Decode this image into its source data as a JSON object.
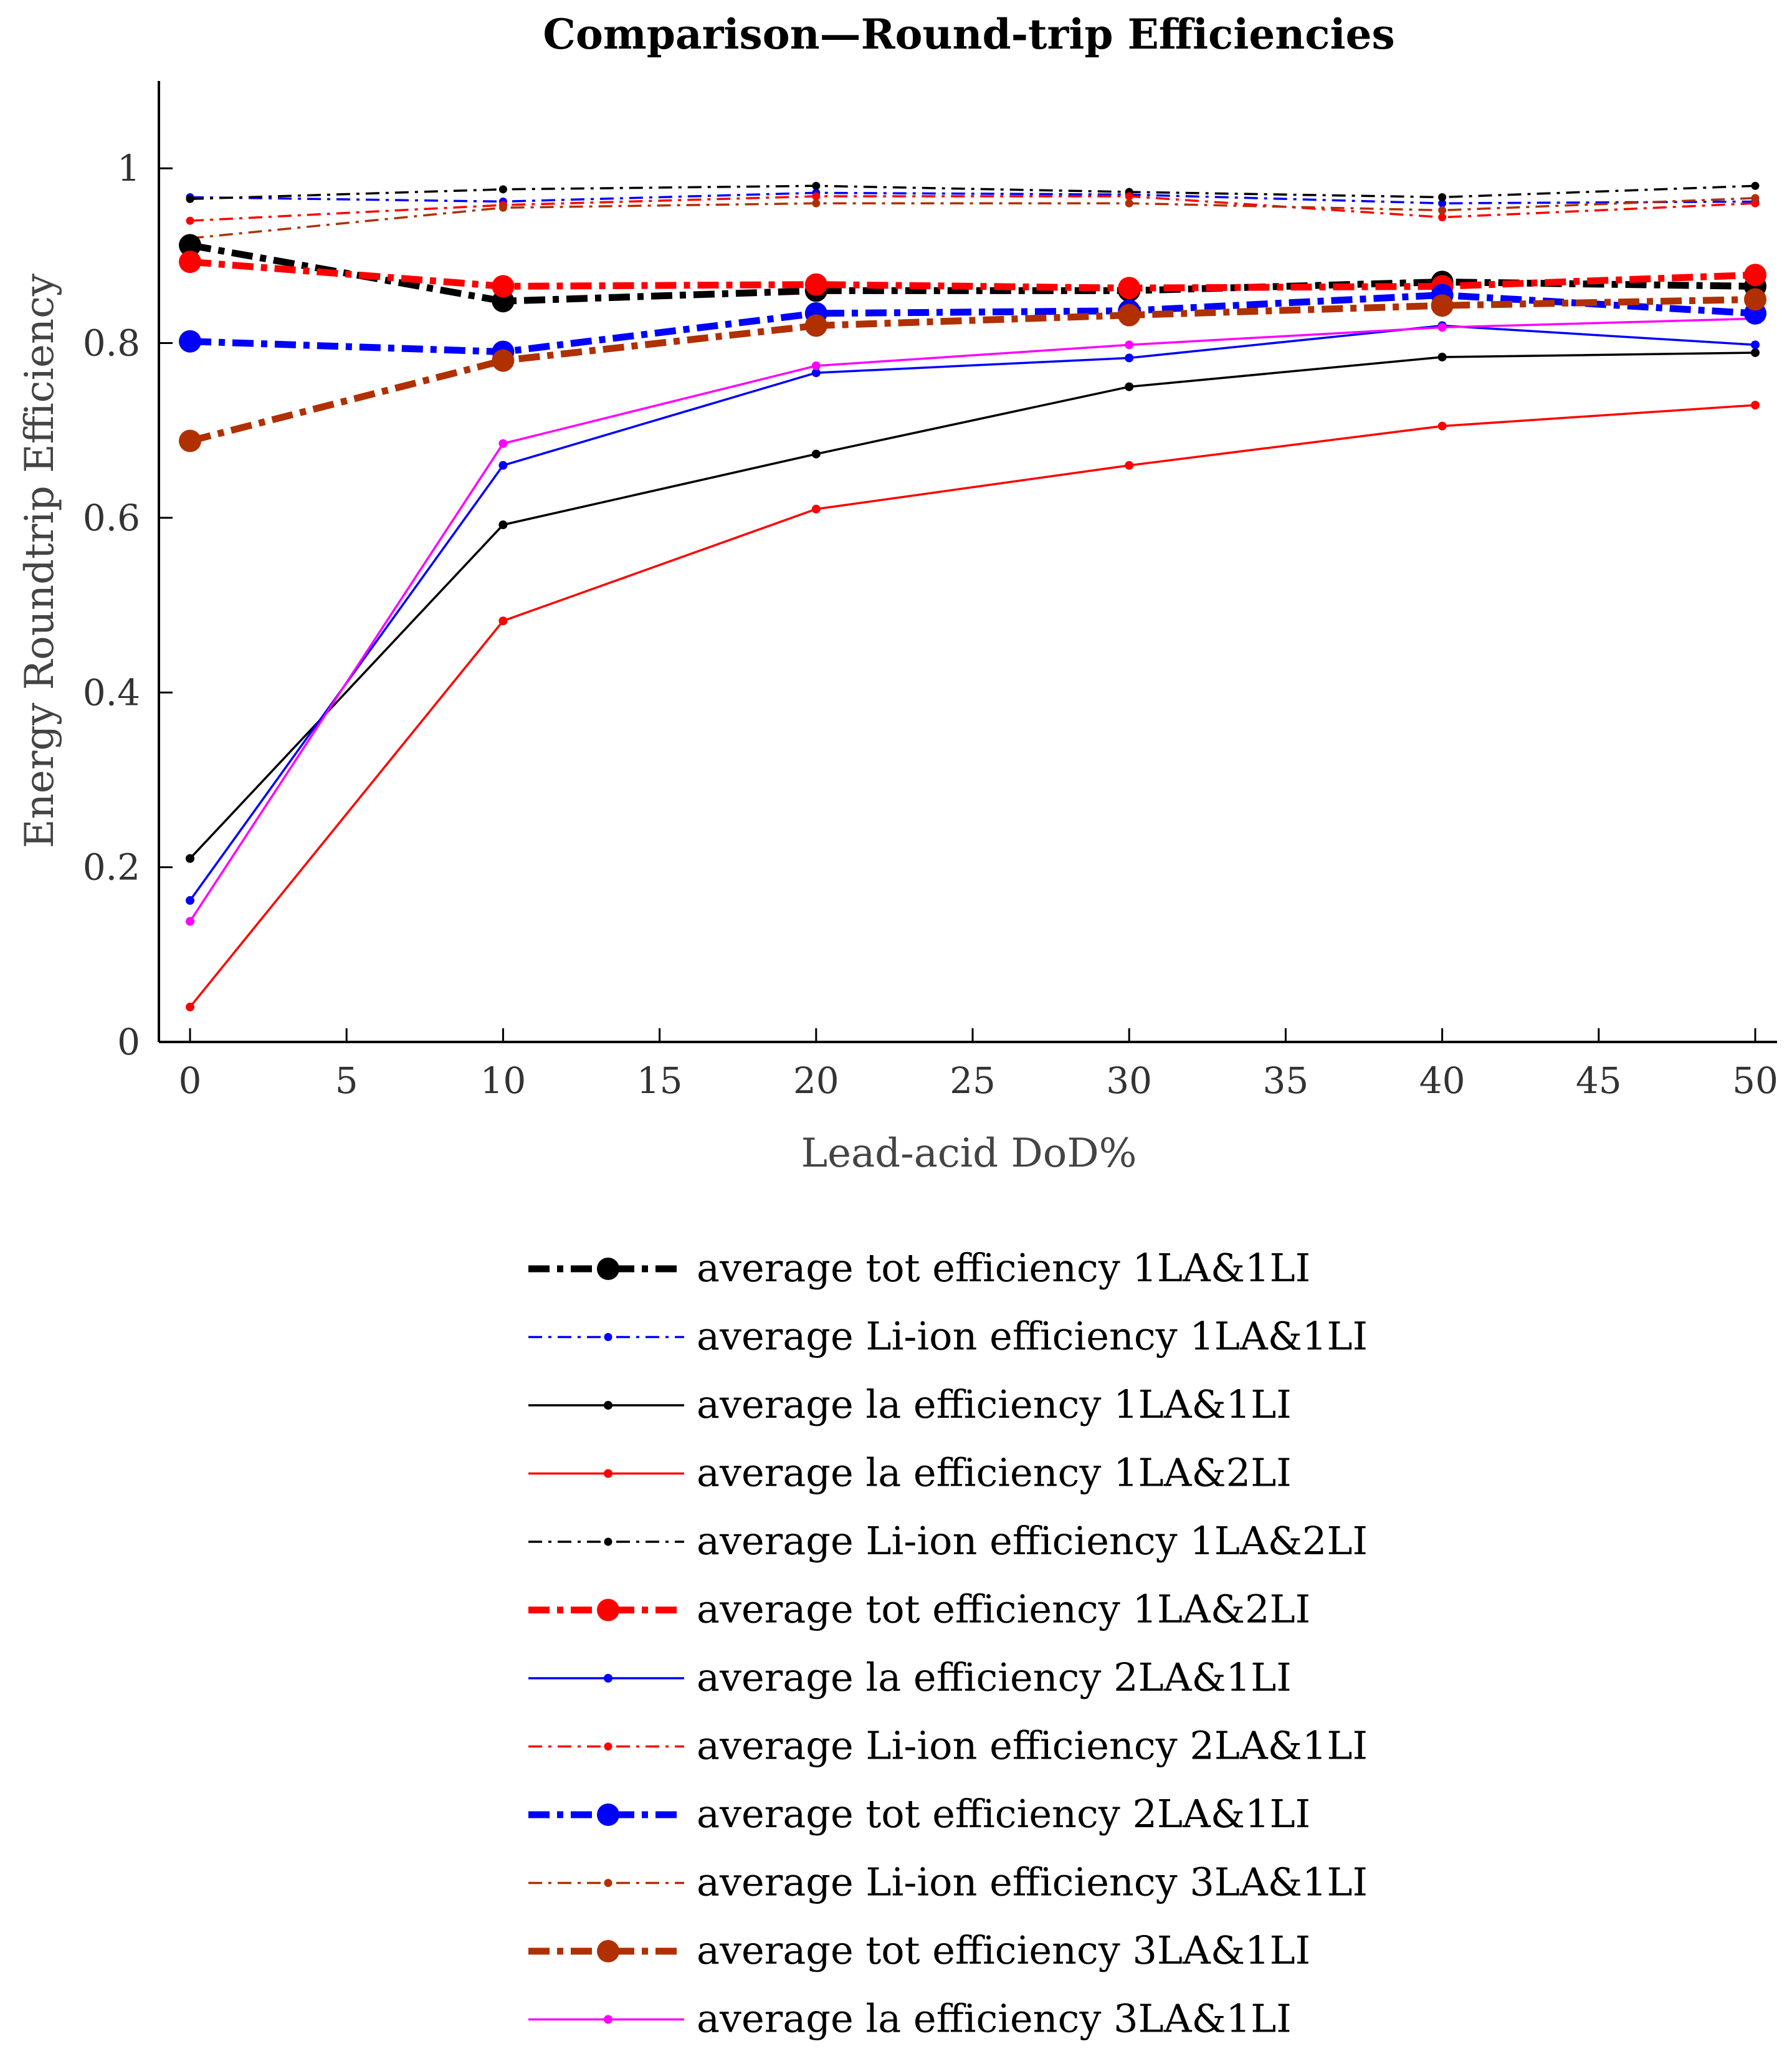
{
  "chart_data": {
    "type": "line",
    "title": "Comparison—Round-trip Efficiencies",
    "xlabel": "Lead-acid DoD%",
    "ylabel": "Energy Roundtrip Efficiency",
    "xlim": [
      0,
      50
    ],
    "ylim": [
      0,
      1.1
    ],
    "x_ticks": [
      "0",
      "5",
      "10",
      "15",
      "20",
      "25",
      "30",
      "35",
      "40",
      "45",
      "50"
    ],
    "y_ticks": [
      "0",
      "0.2",
      "0.4",
      "0.6",
      "0.8",
      "1"
    ],
    "grid": false,
    "legend_position": "bottom",
    "x": [
      0,
      10,
      20,
      30,
      40,
      50
    ],
    "series": [
      {
        "name": "average tot efficiency 1LA&1LI",
        "color": "#000000",
        "style": "thick-dashdot",
        "values": [
          0.912,
          0.848,
          0.86,
          0.86,
          0.87,
          0.865
        ]
      },
      {
        "name": "average Li-ion efficiency 1LA&1LI",
        "color": "#0000ff",
        "style": "thin-dashdot",
        "values": [
          0.967,
          0.962,
          0.972,
          0.97,
          0.96,
          0.962
        ]
      },
      {
        "name": "average la efficiency 1LA&1LI",
        "color": "#000000",
        "style": "thin-solid",
        "values": [
          0.21,
          0.592,
          0.673,
          0.75,
          0.784,
          0.789
        ]
      },
      {
        "name": "average la efficiency 1LA&2LI",
        "color": "#ff0000",
        "style": "thin-solid",
        "values": [
          0.04,
          0.482,
          0.61,
          0.66,
          0.705,
          0.729
        ]
      },
      {
        "name": "average Li-ion efficiency 1LA&2LI",
        "color": "#000000",
        "style": "thin-dashdot",
        "values": [
          0.965,
          0.976,
          0.98,
          0.973,
          0.967,
          0.98
        ]
      },
      {
        "name": "average tot efficiency 1LA&2LI",
        "color": "#ff0000",
        "style": "thick-dashdot",
        "values": [
          0.893,
          0.865,
          0.867,
          0.863,
          0.865,
          0.878
        ]
      },
      {
        "name": "average la efficiency 2LA&1LI",
        "color": "#0000ff",
        "style": "thin-solid",
        "values": [
          0.162,
          0.66,
          0.766,
          0.783,
          0.82,
          0.798
        ]
      },
      {
        "name": "average Li-ion efficiency 2LA&1LI",
        "color": "#ff0000",
        "style": "thin-dashdot",
        "values": [
          0.94,
          0.958,
          0.968,
          0.968,
          0.944,
          0.96
        ]
      },
      {
        "name": "average tot efficiency 2LA&1LI",
        "color": "#0000ff",
        "style": "thick-dashdot",
        "values": [
          0.802,
          0.79,
          0.834,
          0.837,
          0.855,
          0.834
        ]
      },
      {
        "name": "average Li-ion efficiency 3LA&1LI",
        "color": "#b03000",
        "style": "thin-dashdot",
        "values": [
          0.92,
          0.955,
          0.96,
          0.96,
          0.952,
          0.966
        ]
      },
      {
        "name": "average tot efficiency 3LA&1LI",
        "color": "#b03000",
        "style": "thick-dashdot",
        "values": [
          0.688,
          0.78,
          0.82,
          0.832,
          0.843,
          0.85
        ]
      },
      {
        "name": "average la efficiency 3LA&1LI",
        "color": "#ff00ff",
        "style": "thin-solid",
        "values": [
          0.138,
          0.685,
          0.774,
          0.798,
          0.818,
          0.828
        ]
      }
    ]
  }
}
